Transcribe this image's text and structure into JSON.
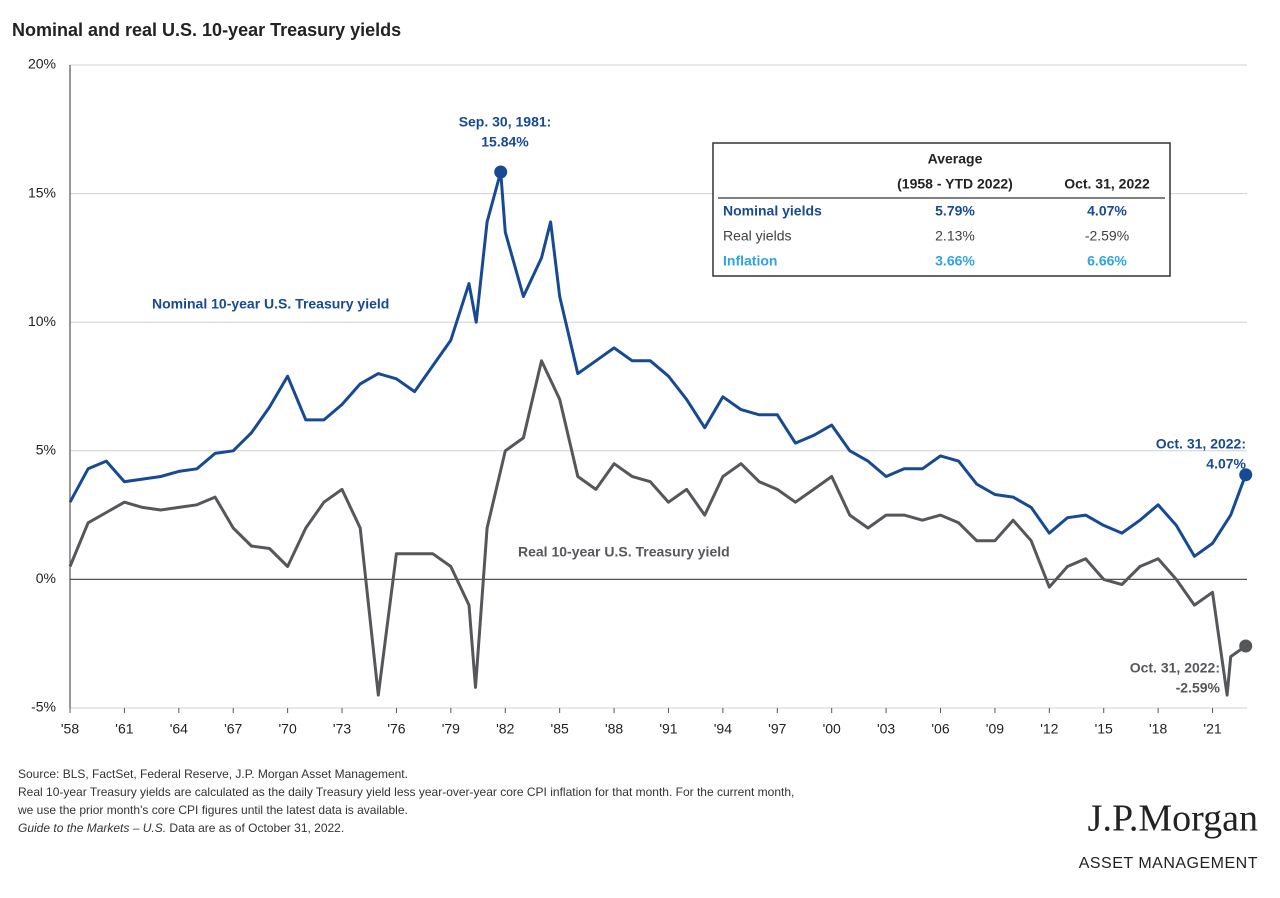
{
  "chart_data": {
    "type": "line",
    "title": "Nominal and real U.S. 10-year Treasury yields",
    "xlim": [
      1958,
      2022.9
    ],
    "xticks": [
      {
        "value": 1958,
        "label": "'58"
      },
      {
        "value": 1961,
        "label": "'61"
      },
      {
        "value": 1964,
        "label": "'64"
      },
      {
        "value": 1967,
        "label": "'67"
      },
      {
        "value": 1970,
        "label": "'70"
      },
      {
        "value": 1973,
        "label": "'73"
      },
      {
        "value": 1976,
        "label": "'76"
      },
      {
        "value": 1979,
        "label": "'79"
      },
      {
        "value": 1982,
        "label": "'82"
      },
      {
        "value": 1985,
        "label": "'85"
      },
      {
        "value": 1988,
        "label": "'88"
      },
      {
        "value": 1991,
        "label": "'91"
      },
      {
        "value": 1994,
        "label": "'94"
      },
      {
        "value": 1997,
        "label": "'97"
      },
      {
        "value": 2000,
        "label": "'00"
      },
      {
        "value": 2003,
        "label": "'03"
      },
      {
        "value": 2006,
        "label": "'06"
      },
      {
        "value": 2009,
        "label": "'09"
      },
      {
        "value": 2012,
        "label": "'12"
      },
      {
        "value": 2015,
        "label": "'15"
      },
      {
        "value": 2018,
        "label": "'18"
      },
      {
        "value": 2021,
        "label": "'21"
      }
    ],
    "ylim": [
      -5,
      20
    ],
    "yticks": [
      {
        "value": -5,
        "label": "-5%"
      },
      {
        "value": 0,
        "label": "0%"
      },
      {
        "value": 5,
        "label": "5%"
      },
      {
        "value": 10,
        "label": "10%"
      },
      {
        "value": 15,
        "label": "15%"
      },
      {
        "value": 20,
        "label": "20%"
      }
    ],
    "grid": true,
    "series": [
      {
        "name": "Nominal 10-year U.S. Treasury yield",
        "color": "#174a93",
        "x": [
          1958,
          1959,
          1960,
          1961,
          1962,
          1963,
          1964,
          1965,
          1966,
          1967,
          1968,
          1969,
          1970,
          1971,
          1972,
          1973,
          1974,
          1975,
          1976,
          1977,
          1978,
          1979,
          1980,
          1980.4,
          1981,
          1981.75,
          1982,
          1983,
          1984,
          1984.5,
          1985,
          1986,
          1987,
          1988,
          1989,
          1990,
          1991,
          1992,
          1993,
          1994,
          1995,
          1996,
          1997,
          1998,
          1999,
          2000,
          2001,
          2002,
          2003,
          2004,
          2005,
          2006,
          2007,
          2008,
          2009,
          2010,
          2011,
          2012,
          2013,
          2014,
          2015,
          2016,
          2017,
          2018,
          2019,
          2020,
          2021,
          2022,
          2022.83
        ],
        "values": [
          3.0,
          4.3,
          4.6,
          3.8,
          3.9,
          4.0,
          4.2,
          4.3,
          4.9,
          5.0,
          5.7,
          6.7,
          7.9,
          6.2,
          6.2,
          6.8,
          7.6,
          8.0,
          7.8,
          7.3,
          8.3,
          9.3,
          11.5,
          10.0,
          13.9,
          15.84,
          13.5,
          11.0,
          12.5,
          13.9,
          11.0,
          8.0,
          8.5,
          9.0,
          8.5,
          8.5,
          7.9,
          7.0,
          5.9,
          7.1,
          6.6,
          6.4,
          6.4,
          5.3,
          5.6,
          6.0,
          5.0,
          4.6,
          4.0,
          4.3,
          4.3,
          4.8,
          4.6,
          3.7,
          3.3,
          3.2,
          2.8,
          1.8,
          2.4,
          2.5,
          2.1,
          1.8,
          2.3,
          2.9,
          2.1,
          0.9,
          1.4,
          2.5,
          4.07
        ]
      },
      {
        "name": "Real 10-year U.S. Treasury yield",
        "color": "#55575b",
        "x": [
          1958,
          1959,
          1960,
          1961,
          1962,
          1963,
          1964,
          1965,
          1966,
          1967,
          1968,
          1969,
          1970,
          1971,
          1972,
          1973,
          1974,
          1975,
          1976,
          1977,
          1978,
          1979,
          1980,
          1980.36,
          1981,
          1982,
          1983,
          1984,
          1985,
          1986,
          1987,
          1988,
          1989,
          1990,
          1991,
          1992,
          1993,
          1994,
          1995,
          1996,
          1997,
          1998,
          1999,
          2000,
          2001,
          2002,
          2003,
          2004,
          2005,
          2006,
          2007,
          2008,
          2009,
          2010,
          2011,
          2012,
          2013,
          2014,
          2015,
          2016,
          2017,
          2018,
          2019,
          2020,
          2021,
          2021.8,
          2022,
          2022.83
        ],
        "values": [
          0.5,
          2.2,
          2.6,
          3.0,
          2.8,
          2.7,
          2.8,
          2.9,
          3.2,
          2.0,
          1.3,
          1.2,
          0.5,
          2.0,
          3.0,
          3.5,
          2.0,
          -4.5,
          1.0,
          1.0,
          1.0,
          0.5,
          -1.0,
          -4.2,
          2.0,
          5.0,
          5.5,
          8.5,
          7.0,
          4.0,
          3.5,
          4.5,
          4.0,
          3.8,
          3.0,
          3.5,
          2.5,
          4.0,
          4.5,
          3.8,
          3.5,
          3.0,
          3.5,
          4.0,
          2.5,
          2.0,
          2.5,
          2.5,
          2.3,
          2.5,
          2.2,
          1.5,
          1.5,
          2.3,
          1.5,
          -0.3,
          0.5,
          0.8,
          0.0,
          -0.2,
          0.5,
          0.8,
          0.0,
          -1.0,
          -0.5,
          -4.5,
          -3.0,
          -2.59
        ]
      }
    ],
    "annotations": [
      {
        "lines": [
          "Sep. 30, 1981:",
          "15.84%"
        ],
        "color": "#174a93"
      },
      {
        "lines": [
          "Oct. 31, 2022:",
          "4.07%"
        ],
        "color": "#174a93"
      },
      {
        "lines": [
          "Oct. 31, 2022:",
          "-2.59%"
        ],
        "color": "#55575b"
      }
    ],
    "table": {
      "headers": [
        [
          "Average",
          "(1958 - YTD 2022)"
        ],
        [
          "Oct. 31, 2022"
        ]
      ],
      "rows": [
        {
          "label": "Nominal yields",
          "color": "#174a93",
          "cells": [
            "5.79%",
            "4.07%"
          ]
        },
        {
          "label": "Real yields",
          "color": "#404040",
          "cells": [
            "2.13%",
            "-2.59%"
          ]
        },
        {
          "label": "Inflation",
          "color": "#2ea3e6",
          "cells": [
            "3.66%",
            "6.66%"
          ]
        }
      ]
    },
    "footnotes": [
      "Source: BLS, FactSet, Federal Reserve, J.P. Morgan Asset Management.",
      "Real 10-year Treasury yields are calculated as the daily Treasury yield less year-over-year core CPI inflation for that month. For the current month,",
      "we use the prior month's core CPI figures until the latest data is available."
    ],
    "guide": {
      "italic": "Guide to the Markets – U.S.",
      "text": " Data are as of October 31, 2022."
    },
    "brand": {
      "name": "J.P.Morgan",
      "sub": "ASSET MANAGEMENT"
    }
  }
}
